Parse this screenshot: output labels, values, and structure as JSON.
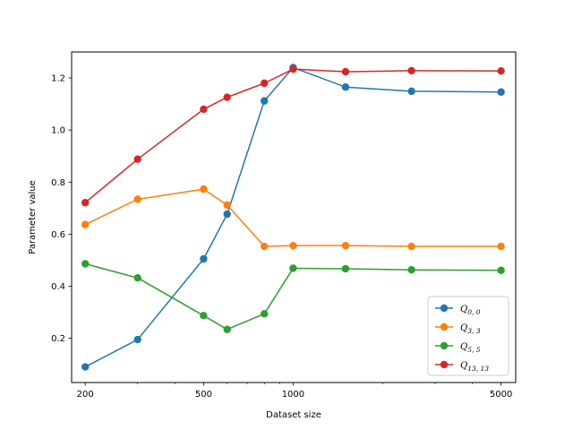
{
  "chart_data": {
    "type": "line",
    "xlabel": "Dataset size",
    "ylabel": "Parameter value",
    "xscale": "log",
    "xlim": [
      180,
      5600
    ],
    "ylim": [
      0.03,
      1.3
    ],
    "x_ticks": [
      200,
      500,
      1000,
      5000
    ],
    "y_ticks": [
      0.2,
      0.4,
      0.6,
      0.8,
      1.0,
      1.2
    ],
    "grid": false,
    "legend_location": "lower-right",
    "x": [
      200,
      300,
      500,
      600,
      800,
      1000,
      1500,
      2500,
      5000
    ],
    "series": [
      {
        "name_base": "Q",
        "name_sub": "0, 0",
        "color": "#1f77b4",
        "values": [
          0.09,
          0.195,
          0.505,
          0.677,
          1.112,
          1.24,
          1.165,
          1.149,
          1.146
        ]
      },
      {
        "name_base": "Q",
        "name_sub": "3, 3",
        "color": "#ff7f0e",
        "values": [
          0.637,
          0.734,
          0.773,
          0.712,
          0.553,
          0.556,
          0.556,
          0.553,
          0.553
        ]
      },
      {
        "name_base": "Q",
        "name_sub": "5, 5",
        "color": "#2ca02c",
        "values": [
          0.486,
          0.432,
          0.287,
          0.234,
          0.294,
          0.469,
          0.467,
          0.463,
          0.461
        ]
      },
      {
        "name_base": "Q",
        "name_sub": "13, 13",
        "color": "#d62728",
        "values": [
          0.721,
          0.888,
          1.08,
          1.126,
          1.18,
          1.234,
          1.224,
          1.228,
          1.227
        ]
      }
    ]
  }
}
